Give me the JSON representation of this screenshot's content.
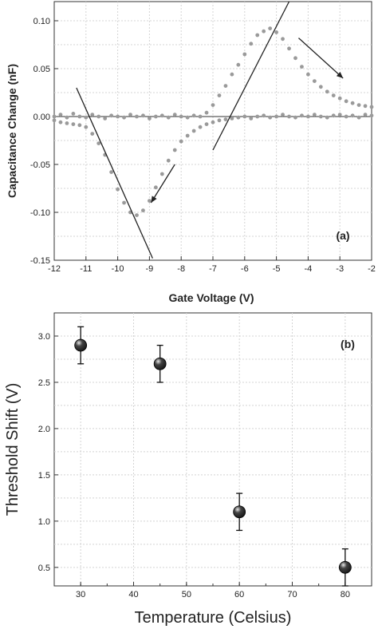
{
  "chart_data": [
    {
      "panel_label": "(a)",
      "type": "scatter",
      "xlabel": "Gate Voltage (V)",
      "ylabel": "Capacitance Change (nF)",
      "xlim": [
        -12,
        -2
      ],
      "ylim": [
        -0.15,
        0.12
      ],
      "xticks": [
        -12,
        -11,
        -10,
        -9,
        -8,
        -7,
        -6,
        -5,
        -4,
        -3,
        -2
      ],
      "xtick_labels": [
        "-12",
        "-11",
        "-10",
        "-9",
        "-8",
        "-7",
        "-6",
        "-5",
        "-4",
        "-3",
        "-2"
      ],
      "yticks": [
        -0.15,
        -0.1,
        -0.05,
        0.0,
        0.05,
        0.1
      ],
      "ytick_labels": [
        "-0.15",
        "-0.10",
        "-0.05",
        "0.00",
        "0.05",
        "0.10"
      ],
      "grid": true,
      "marker_color": "#9a9a9a",
      "series": [
        {
          "values_x": [
            -12.0,
            -11.8,
            -11.6,
            -11.4,
            -11.2,
            -11.0,
            -10.8,
            -10.6,
            -10.4,
            -10.2,
            -10.0,
            -9.8,
            -9.6,
            -9.4,
            -9.2,
            -9.0,
            -8.8,
            -8.6,
            -8.4,
            -8.2,
            -8.0,
            -7.8,
            -7.6,
            -7.4,
            -7.2,
            -7.0,
            -6.8,
            -6.6,
            -6.4,
            -6.2,
            -6.0,
            -5.8,
            -5.6,
            -5.4,
            -5.2,
            -5.0,
            -4.8,
            -4.6,
            -4.4,
            -4.2,
            -4.0,
            -3.8,
            -3.6,
            -3.4,
            -3.2,
            -3.0,
            -2.8,
            -2.6,
            -2.4,
            -2.2,
            -2.0
          ],
          "values_y": [
            0.0,
            0.002,
            -0.001,
            0.003,
            0.0,
            -0.001,
            0.002,
            0.0,
            -0.002,
            0.001,
            0.0,
            -0.001,
            0.002,
            0.0,
            0.001,
            -0.002,
            0.0,
            0.001,
            -0.001,
            0.002,
            0.0,
            -0.001,
            0.001,
            0.0,
            0.004,
            0.012,
            0.022,
            0.032,
            0.044,
            0.054,
            0.065,
            0.076,
            0.085,
            0.089,
            0.092,
            0.088,
            0.081,
            0.071,
            0.061,
            0.052,
            0.044,
            0.037,
            0.031,
            0.026,
            0.022,
            0.019,
            0.016,
            0.014,
            0.012,
            0.011,
            0.01
          ]
        },
        {
          "values_x": [
            -12.0,
            -11.8,
            -11.6,
            -11.4,
            -11.2,
            -11.0,
            -10.8,
            -10.6,
            -10.4,
            -10.2,
            -10.0,
            -9.8,
            -9.6,
            -9.4,
            -9.2,
            -9.0,
            -8.8,
            -8.6,
            -8.4,
            -8.2,
            -8.0,
            -7.8,
            -7.6,
            -7.4,
            -7.2,
            -7.0,
            -6.8,
            -6.6,
            -6.4,
            -6.2,
            -6.0,
            -5.8,
            -5.6,
            -5.4,
            -5.2,
            -5.0,
            -4.8,
            -4.6,
            -4.4,
            -4.2,
            -4.0,
            -3.8,
            -3.6,
            -3.4,
            -3.2,
            -3.0,
            -2.8,
            -2.6,
            -2.4,
            -2.2,
            -2.0
          ],
          "values_y": [
            -0.004,
            -0.006,
            -0.007,
            -0.008,
            -0.009,
            -0.011,
            -0.018,
            -0.028,
            -0.04,
            -0.058,
            -0.076,
            -0.09,
            -0.1,
            -0.103,
            -0.098,
            -0.088,
            -0.074,
            -0.06,
            -0.046,
            -0.035,
            -0.026,
            -0.02,
            -0.015,
            -0.011,
            -0.008,
            -0.006,
            -0.004,
            -0.003,
            -0.002,
            -0.001,
            0.0,
            -0.002,
            0.0,
            0.001,
            -0.001,
            0.0,
            0.002,
            0.0,
            -0.001,
            0.001,
            0.0,
            0.002,
            0.0,
            -0.001,
            0.001,
            0.002,
            0.0,
            0.001,
            -0.001,
            0.002,
            0.001
          ]
        }
      ],
      "reference_lines": [
        {
          "from": [
            -11.3,
            0.03
          ],
          "to": [
            -8.9,
            -0.148
          ]
        },
        {
          "from": [
            -7.0,
            -0.035
          ],
          "to": [
            -4.6,
            0.12
          ]
        }
      ],
      "arrows": [
        {
          "from": [
            -8.2,
            -0.05
          ],
          "to": [
            -8.95,
            -0.09
          ]
        },
        {
          "from": [
            -4.3,
            0.082
          ],
          "to": [
            -2.9,
            0.04
          ]
        }
      ]
    },
    {
      "panel_label": "(b)",
      "type": "scatter",
      "xlabel": "Temperature (Celsius)",
      "ylabel": "Threshold Shift (V)",
      "xlim": [
        25,
        85
      ],
      "ylim": [
        0.3,
        3.25
      ],
      "xticks": [
        30,
        40,
        50,
        60,
        70,
        80
      ],
      "xtick_labels": [
        "30",
        "40",
        "50",
        "60",
        "70",
        "80"
      ],
      "yticks": [
        0.5,
        1.0,
        1.5,
        2.0,
        2.5,
        3.0
      ],
      "ytick_labels": [
        "0.5",
        "1.0",
        "1.5",
        "2.0",
        "2.5",
        "3.0"
      ],
      "grid": true,
      "marker_color": "#1a1a1a",
      "x": [
        30,
        45,
        60,
        80
      ],
      "y": [
        2.9,
        2.7,
        1.1,
        0.5
      ],
      "yerr": [
        0.2,
        0.2,
        0.2,
        0.2
      ]
    }
  ]
}
